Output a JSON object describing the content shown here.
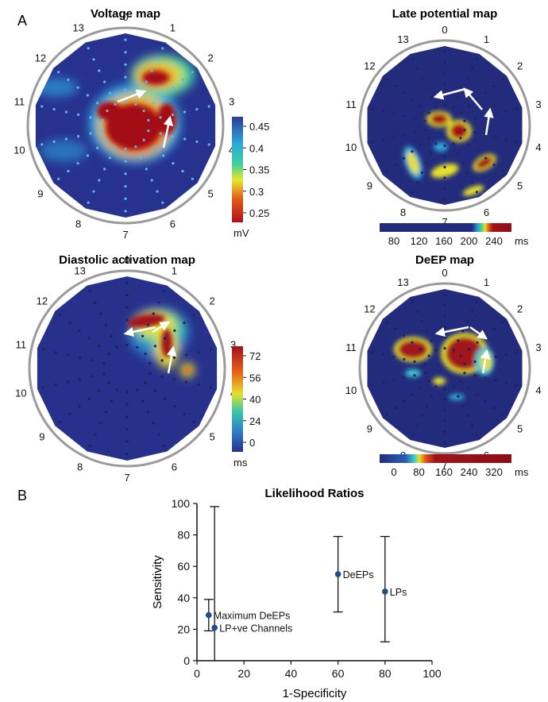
{
  "panel_a_label": "A",
  "panel_b_label": "B",
  "polar_maps": [
    {
      "title": "Voltage map",
      "channel_labels": [
        "0",
        "1",
        "2",
        "3",
        "4",
        "5",
        "6",
        "7",
        "8",
        "9",
        "10",
        "11",
        "12",
        "13"
      ],
      "colorbar": {
        "orientation": "vertical",
        "ticks": [
          "0.45",
          "0.4",
          "0.35",
          "0.3",
          "0.25"
        ],
        "unit": "mV"
      }
    },
    {
      "title": "Late potential map",
      "channel_labels": [
        "0",
        "1",
        "2",
        "3",
        "4",
        "5",
        "6",
        "7",
        "8",
        "9",
        "10",
        "11",
        "12",
        "13"
      ],
      "colorbar": {
        "orientation": "horizontal",
        "ticks": [
          "80",
          "120",
          "160",
          "200",
          "240"
        ],
        "unit": "ms"
      }
    },
    {
      "title": "Diastolic activation map",
      "channel_labels": [
        "0",
        "1",
        "2",
        "3",
        "4",
        "5",
        "6",
        "7",
        "8",
        "9",
        "10",
        "11",
        "12",
        "13"
      ],
      "colorbar": {
        "orientation": "vertical",
        "ticks": [
          "72",
          "56",
          "40",
          "24",
          "0"
        ],
        "unit": "ms"
      }
    },
    {
      "title": "DeEP map",
      "channel_labels": [
        "0",
        "1",
        "2",
        "3",
        "4",
        "5",
        "6",
        "7",
        "8",
        "9",
        "10",
        "11",
        "12",
        "13"
      ],
      "colorbar": {
        "orientation": "horizontal",
        "ticks": [
          "0",
          "80",
          "160",
          "240",
          "320"
        ],
        "unit": "ms"
      }
    }
  ],
  "chart_data": {
    "type": "scatter",
    "title": "Likelihood Ratios",
    "xlabel": "1-Specificity",
    "ylabel": "Sensitivity",
    "xlim": [
      0,
      100
    ],
    "ylim": [
      0,
      100
    ],
    "xticks": [
      "0",
      "20",
      "40",
      "60",
      "80",
      "100"
    ],
    "yticks": [
      "0",
      "20",
      "40",
      "60",
      "80",
      "100"
    ],
    "grid": false,
    "marker_color": "#1f4e8c",
    "points": [
      {
        "label": "Maximum DeEPs",
        "x": 5,
        "y": 29,
        "y_low": 19,
        "y_high": 39
      },
      {
        "label": "LP+ve Channels",
        "x": 7.5,
        "y": 21,
        "y_low": 0,
        "y_high": 98
      },
      {
        "label": "DeEPs",
        "x": 60,
        "y": 55,
        "y_low": 31,
        "y_high": 79
      },
      {
        "label": "LPs",
        "x": 80,
        "y": 44,
        "y_low": 12,
        "y_high": 79
      }
    ]
  }
}
